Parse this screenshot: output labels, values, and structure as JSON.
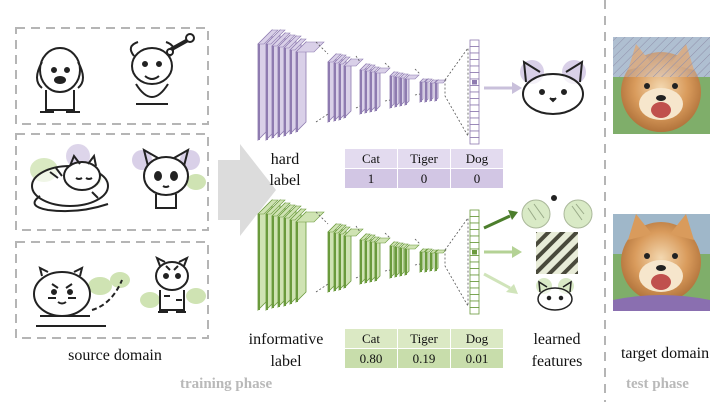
{
  "labels": {
    "source_domain": "source domain",
    "training_phase": "training phase",
    "hard_label": [
      "hard",
      "label"
    ],
    "informative_label": [
      "informative",
      "label"
    ],
    "learned_features": [
      "learned",
      "features"
    ],
    "target_domain": "target domain",
    "test_phase": "test phase"
  },
  "hard_table": {
    "headers": [
      "Cat",
      "Tiger",
      "Dog"
    ],
    "values": [
      "1",
      "0",
      "0"
    ]
  },
  "informative_table": {
    "headers": [
      "Cat",
      "Tiger",
      "Dog"
    ],
    "values": [
      "0.80",
      "0.19",
      "0.01"
    ]
  },
  "colors": {
    "hard_network": "#8e7bb0",
    "hard_network_light": "#d9d0e8",
    "informative_network": "#6a9a3c",
    "informative_network_light": "#cfe3b3",
    "hard_table_header": "#e3dbef",
    "informative_table_header": "#dbe9c4",
    "phase_text": "#b9b9b9",
    "dashed_border": "#b5b5b5"
  },
  "icons": {
    "source_row_1": [
      "puppy-sketch",
      "puppy-with-bone-sketch"
    ],
    "source_row_2": [
      "sleeping-cat-sketch",
      "kitten-sketch"
    ],
    "source_row_3": [
      "tiger-cub-sketch",
      "standing-tiger-sketch"
    ],
    "target_images": [
      "shiba-dog-photo-occluded",
      "shiba-dog-photo"
    ],
    "learned_features": [
      "ears-feature",
      "stripes-feature",
      "face-feature"
    ]
  }
}
